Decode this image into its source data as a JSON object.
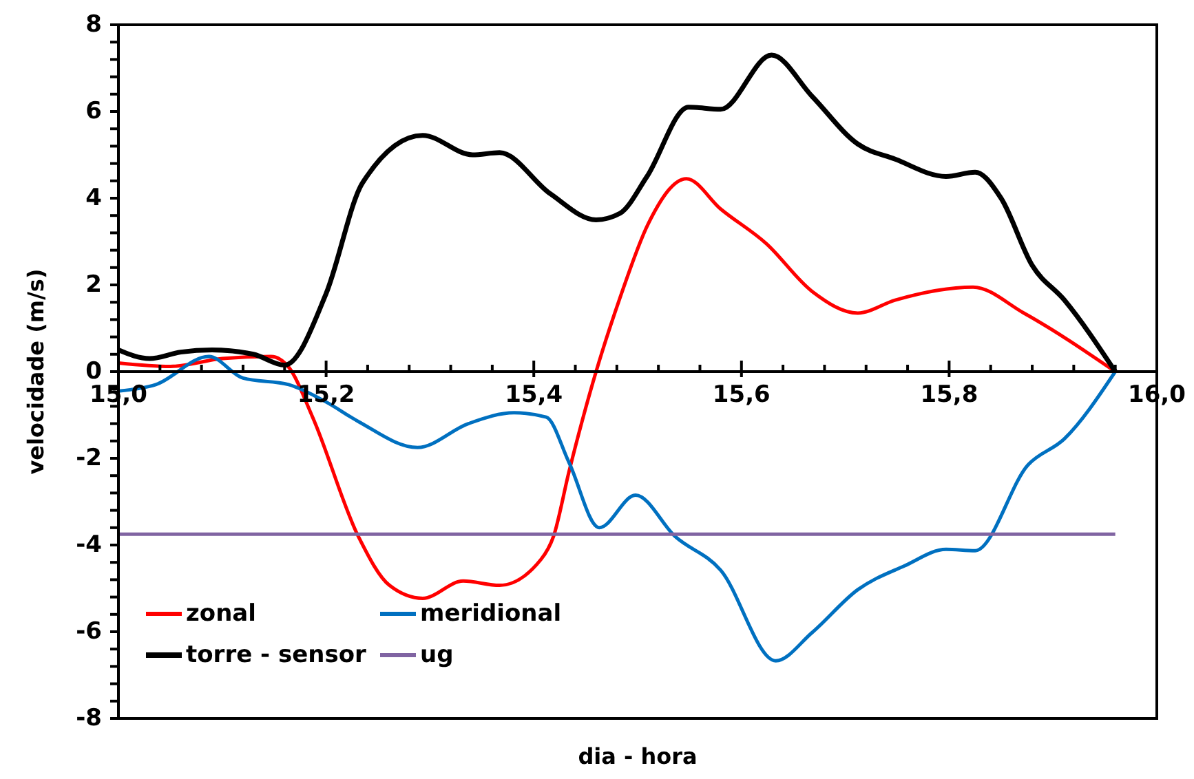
{
  "chart_data": {
    "type": "line",
    "xlabel": "dia - hora",
    "ylabel": "velocidade (m/s)",
    "xlim": [
      15,
      16
    ],
    "ylim": [
      -8,
      8
    ],
    "xticks": [
      {
        "value": 15,
        "label": "15,0"
      },
      {
        "value": 15.04,
        "label": null
      },
      {
        "value": 15.08,
        "label": null
      },
      {
        "value": 15.12,
        "label": null
      },
      {
        "value": 15.16,
        "label": null
      },
      {
        "value": 15.2,
        "label": "15,2"
      },
      {
        "value": 15.24,
        "label": null
      },
      {
        "value": 15.28,
        "label": null
      },
      {
        "value": 15.32,
        "label": null
      },
      {
        "value": 15.36,
        "label": null
      },
      {
        "value": 15.4,
        "label": "15,4"
      },
      {
        "value": 15.44,
        "label": null
      },
      {
        "value": 15.48,
        "label": null
      },
      {
        "value": 15.52,
        "label": null
      },
      {
        "value": 15.56,
        "label": null
      },
      {
        "value": 15.6,
        "label": "15,6"
      },
      {
        "value": 15.64,
        "label": null
      },
      {
        "value": 15.68,
        "label": null
      },
      {
        "value": 15.72,
        "label": null
      },
      {
        "value": 15.76,
        "label": null
      },
      {
        "value": 15.8,
        "label": "15,8"
      },
      {
        "value": 15.84,
        "label": null
      },
      {
        "value": 15.88,
        "label": null
      },
      {
        "value": 15.92,
        "label": null
      },
      {
        "value": 15.96,
        "label": null
      },
      {
        "value": 16,
        "label": "16,0"
      }
    ],
    "yticks": [
      -8,
      {
        "value": -7.6,
        "label": null
      },
      {
        "value": -7.2,
        "label": null
      },
      {
        "value": -6.8,
        "label": null
      },
      {
        "value": -6.4,
        "label": null
      },
      -6,
      {
        "value": -5.6,
        "label": null
      },
      {
        "value": -5.2,
        "label": null
      },
      {
        "value": -4.8,
        "label": null
      },
      {
        "value": -4.4,
        "label": null
      },
      -4,
      {
        "value": -3.6,
        "label": null
      },
      {
        "value": -3.2,
        "label": null
      },
      {
        "value": -2.8,
        "label": null
      },
      {
        "value": -2.4,
        "label": null
      },
      -2,
      {
        "value": -1.6,
        "label": null
      },
      {
        "value": -1.2,
        "label": null
      },
      {
        "value": -0.8,
        "label": null
      },
      {
        "value": -0.4,
        "label": null
      },
      0,
      {
        "value": 0.4,
        "label": null
      },
      {
        "value": 0.8,
        "label": null
      },
      {
        "value": 1.2,
        "label": null
      },
      {
        "value": 1.6,
        "label": null
      },
      2,
      {
        "value": 2.4,
        "label": null
      },
      {
        "value": 2.8,
        "label": null
      },
      {
        "value": 3.2,
        "label": null
      },
      {
        "value": 3.6,
        "label": null
      },
      4,
      {
        "value": 4.4,
        "label": null
      },
      {
        "value": 4.8,
        "label": null
      },
      {
        "value": 5.2,
        "label": null
      },
      {
        "value": 5.6,
        "label": null
      },
      6,
      {
        "value": 6.4,
        "label": null
      },
      {
        "value": 6.8,
        "label": null
      },
      {
        "value": 7.2,
        "label": null
      },
      {
        "value": 7.6,
        "label": null
      },
      8
    ],
    "grid": false,
    "legend": "bottom left",
    "marker": "none",
    "line_style": "solid",
    "series": [
      {
        "name": "zonal",
        "color": "#ff0000",
        "x": [
          15.0,
          15.05,
          15.1,
          15.147,
          15.164,
          15.187,
          15.231,
          15.261,
          15.293,
          15.332,
          15.367,
          15.407,
          15.419,
          15.434,
          15.46,
          15.483,
          15.51,
          15.547,
          15.58,
          15.624,
          15.668,
          15.712,
          15.748,
          15.823,
          15.872,
          15.96
        ],
        "values": [
          0.2,
          0.12,
          0.3,
          0.35,
          0.1,
          -1.05,
          -3.8,
          -4.93,
          -5.23,
          -4.83,
          -4.93,
          -4.33,
          -3.8,
          -2.3,
          0,
          1.7,
          3.4,
          4.45,
          3.75,
          2.95,
          1.85,
          1.35,
          1.65,
          1.95,
          1.35,
          0
        ]
      },
      {
        "name": "meridional",
        "color": "#0070c0",
        "x": [
          15.0,
          15.036,
          15.087,
          15.12,
          15.164,
          15.2,
          15.231,
          15.288,
          15.337,
          15.381,
          15.412,
          15.434,
          15.463,
          15.498,
          15.536,
          15.58,
          15.633,
          15.668,
          15.712,
          15.757,
          15.797,
          15.825,
          15.876,
          15.911,
          15.96
        ],
        "values": [
          -0.45,
          -0.3,
          0.35,
          -0.15,
          -0.3,
          -0.7,
          -1.15,
          -1.75,
          -1.2,
          -0.95,
          -1.05,
          -2.1,
          -3.6,
          -2.85,
          -3.8,
          -4.58,
          -6.67,
          -6.02,
          -5.03,
          -4.48,
          -4.1,
          -4.13,
          -2.15,
          -1.55,
          0
        ]
      },
      {
        "name": "torre - sensor",
        "color": "#000000",
        "x": [
          15.0,
          15.03,
          15.06,
          15.09,
          15.13,
          15.16,
          15.2,
          15.235,
          15.293,
          15.341,
          15.367,
          15.416,
          15.46,
          15.483,
          15.509,
          15.549,
          15.58,
          15.629,
          15.668,
          15.712,
          15.748,
          15.797,
          15.825,
          15.85,
          15.88,
          15.911,
          15.96
        ],
        "values": [
          0.5,
          0.3,
          0.45,
          0.5,
          0.4,
          0.15,
          1.8,
          4.35,
          5.45,
          5.0,
          5.05,
          4.1,
          3.5,
          3.65,
          4.5,
          6.1,
          6.05,
          7.3,
          6.35,
          5.25,
          4.9,
          4.5,
          4.6,
          4.0,
          2.45,
          1.65,
          0
        ]
      },
      {
        "name": "ug",
        "color": "#8064a2",
        "x": [
          15.0,
          15.96
        ],
        "values": [
          -3.75,
          -3.75
        ]
      }
    ]
  }
}
